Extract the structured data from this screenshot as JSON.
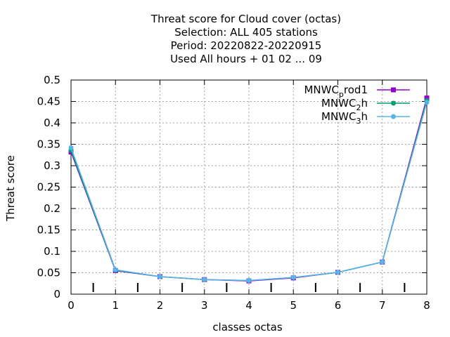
{
  "chart_data": {
    "type": "line",
    "title_lines": [
      "Threat score  for Cloud cover (octas)",
      "Selection: ALL     405 stations",
      "Period: 20220822-20220915",
      "Used  All hours  + 01 02 ... 09"
    ],
    "xlabel": "classes octas",
    "ylabel": "Threat score",
    "xlim": [
      0,
      8
    ],
    "ylim": [
      0,
      0.5
    ],
    "x_ticks": [
      "0",
      "1",
      "2",
      "3",
      "4",
      "5",
      "6",
      "7",
      "8"
    ],
    "y_ticks": [
      "0",
      "0.05",
      "0.1",
      "0.15",
      "0.2",
      "0.25",
      "0.3",
      "0.35",
      "0.4",
      "0.45",
      "0.5"
    ],
    "grid": true,
    "legend_position": "top-right",
    "x": [
      0,
      1,
      2,
      3,
      4,
      5,
      6,
      7,
      8
    ],
    "series": [
      {
        "name": "MNWC_prod1",
        "legend_base": "MNWC",
        "legend_sub": "p",
        "legend_rest": "rod1",
        "color": "#9400d3",
        "values": [
          0.332,
          0.055,
          0.041,
          0.034,
          0.031,
          0.038,
          0.051,
          0.075,
          0.458
        ]
      },
      {
        "name": "MNWC_2h",
        "legend_base": "MNWC",
        "legend_sub": "2",
        "legend_rest": "h",
        "color": "#009e73",
        "values": [
          0.336,
          0.056,
          0.041,
          0.034,
          0.032,
          0.039,
          0.051,
          0.075,
          0.452
        ]
      },
      {
        "name": "MNWC_3h",
        "legend_base": "MNWC",
        "legend_sub": "3",
        "legend_rest": "h",
        "color": "#56b4e9",
        "values": [
          0.342,
          0.057,
          0.041,
          0.034,
          0.032,
          0.039,
          0.051,
          0.075,
          0.448
        ]
      }
    ]
  }
}
